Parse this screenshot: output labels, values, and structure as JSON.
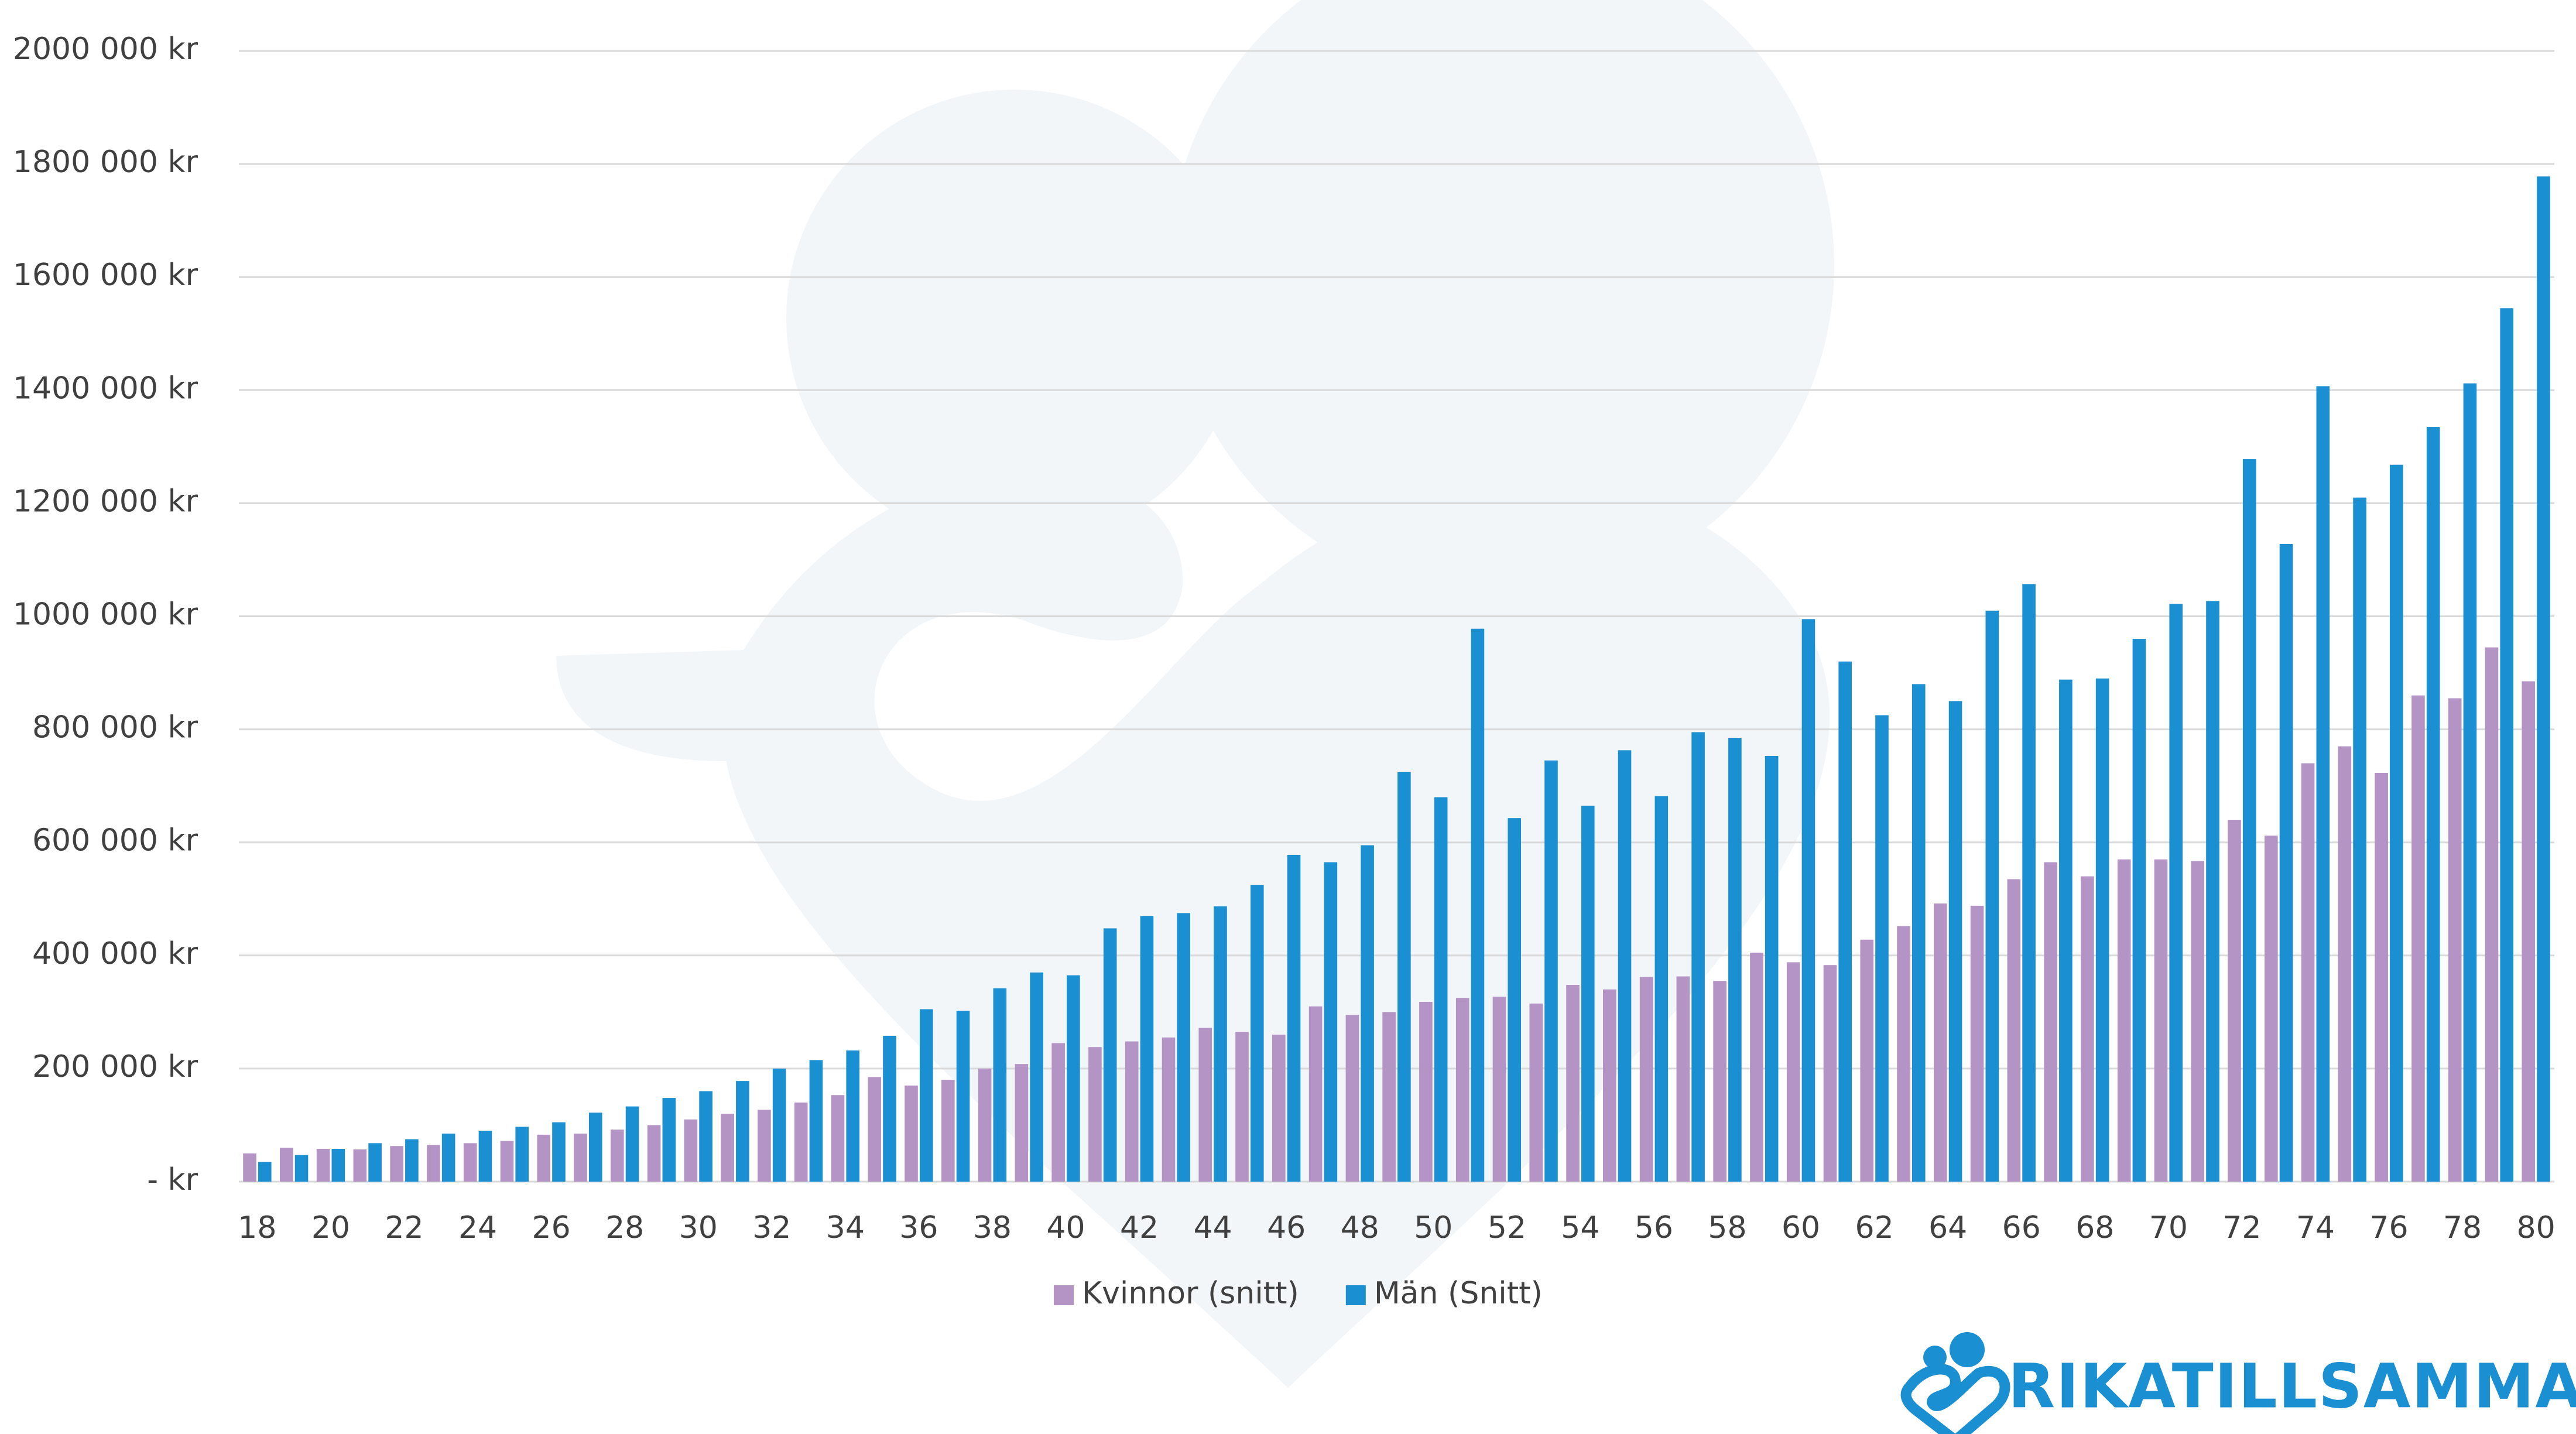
{
  "chart_data": {
    "type": "bar",
    "categories": [
      18,
      null,
      20,
      null,
      22,
      null,
      24,
      null,
      26,
      null,
      28,
      null,
      30,
      null,
      32,
      null,
      34,
      null,
      36,
      null,
      38,
      null,
      40,
      null,
      42,
      null,
      44,
      null,
      46,
      null,
      48,
      null,
      50,
      null,
      52,
      null,
      54,
      null,
      56,
      null,
      58,
      null,
      60,
      null,
      62,
      null,
      64,
      null,
      66,
      null,
      68,
      null,
      70,
      null,
      72,
      null,
      74,
      null,
      76,
      null,
      78,
      null,
      80
    ],
    "series": [
      {
        "name": "Kvinnor (snitt)",
        "color": "#b394c4",
        "values": [
          50000,
          60000,
          58000,
          57000,
          63000,
          65000,
          68000,
          72000,
          83000,
          85000,
          92000,
          100000,
          110000,
          120000,
          127000,
          140000,
          153000,
          185000,
          170000,
          180000,
          200000,
          208000,
          245000,
          238000,
          248000,
          255000,
          272000,
          265000,
          260000,
          310000,
          295000,
          300000,
          318000,
          325000,
          327000,
          315000,
          348000,
          340000,
          362000,
          363000,
          355000,
          405000,
          388000,
          383000,
          428000,
          452000,
          492000,
          488000,
          535000,
          565000,
          540000,
          570000,
          570000,
          567000,
          640000,
          612000,
          740000,
          770000,
          723000,
          860000,
          855000,
          945000,
          885000
        ]
      },
      {
        "name": "Män (Snitt)",
        "color": "#1a8fd2",
        "values": [
          35000,
          47000,
          58000,
          68000,
          75000,
          85000,
          90000,
          97000,
          105000,
          122000,
          133000,
          148000,
          160000,
          178000,
          200000,
          215000,
          232000,
          258000,
          305000,
          302000,
          342000,
          370000,
          365000,
          448000,
          470000,
          475000,
          487000,
          525000,
          578000,
          565000,
          595000,
          725000,
          680000,
          978000,
          643000,
          745000,
          665000,
          763000,
          682000,
          795000,
          785000,
          753000,
          995000,
          920000,
          825000,
          880000,
          850000,
          1010000,
          1057000,
          888000,
          890000,
          960000,
          1022000,
          1027000,
          1278000,
          1128000,
          1407000,
          1210000,
          1268000,
          1335000,
          1412000,
          1545000,
          1778000
        ]
      }
    ],
    "ylim": [
      0,
      2000000
    ],
    "yticks": [
      {
        "value": 0,
        "label": "-   kr"
      },
      {
        "value": 200000,
        "label": "200 000 kr"
      },
      {
        "value": 400000,
        "label": "400 000 kr"
      },
      {
        "value": 600000,
        "label": "600 000 kr"
      },
      {
        "value": 800000,
        "label": "800 000 kr"
      },
      {
        "value": 1000000,
        "label": "1000 000 kr"
      },
      {
        "value": 1200000,
        "label": "1200 000 kr"
      },
      {
        "value": 1400000,
        "label": "1400 000 kr"
      },
      {
        "value": 1600000,
        "label": "1600 000 kr"
      },
      {
        "value": 1800000,
        "label": "1800 000 kr"
      },
      {
        "value": 2000000,
        "label": "2000 000 kr"
      }
    ],
    "grid": true,
    "legend": "bottom",
    "brand": "RIKATILLSAMMANS"
  }
}
